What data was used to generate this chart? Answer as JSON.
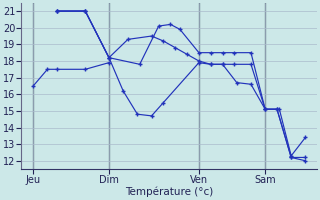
{
  "xlabel": "Température (°c)",
  "background_color": "#cce8e8",
  "line_color": "#2233bb",
  "grid_color": "#aabbcc",
  "vline_color": "#445566",
  "ylim": [
    11.5,
    21.5
  ],
  "yticks": [
    12,
    13,
    14,
    15,
    16,
    17,
    18,
    19,
    20,
    21
  ],
  "xlim": [
    -0.5,
    12.0
  ],
  "day_labels": [
    "Jeu",
    "Dim",
    "Ven",
    "Sam"
  ],
  "day_positions": [
    0,
    3.2,
    7.0,
    9.8
  ],
  "lines": [
    {
      "x": [
        1.0,
        2.2,
        3.2,
        3.8,
        4.4,
        5.0,
        5.5,
        7.0,
        7.5,
        8.0,
        8.6,
        9.2,
        9.8,
        10.4,
        10.9,
        11.5
      ],
      "y": [
        21.0,
        21.0,
        18.2,
        16.2,
        14.8,
        14.7,
        15.5,
        17.9,
        17.8,
        17.8,
        16.7,
        16.6,
        15.1,
        15.1,
        12.3,
        13.4
      ]
    },
    {
      "x": [
        1.0,
        2.2,
        3.2,
        4.5,
        5.3,
        5.8,
        6.2,
        7.0,
        7.5,
        8.0,
        8.5,
        9.2,
        9.8,
        10.3,
        10.9,
        11.5
      ],
      "y": [
        21.0,
        21.0,
        18.2,
        17.8,
        20.1,
        20.2,
        19.9,
        18.5,
        18.5,
        18.5,
        18.5,
        18.5,
        15.1,
        15.1,
        12.2,
        12.2
      ]
    },
    {
      "x": [
        1.0,
        2.2,
        3.2,
        4.0,
        5.0,
        5.5,
        6.0,
        6.5,
        7.0,
        7.5,
        8.0,
        8.5,
        9.2,
        9.8,
        10.3,
        10.9,
        11.5
      ],
      "y": [
        21.0,
        21.0,
        18.2,
        19.3,
        19.5,
        19.2,
        18.8,
        18.4,
        18.0,
        17.8,
        17.8,
        17.8,
        17.8,
        15.1,
        15.1,
        12.2,
        12.0
      ]
    },
    {
      "x": [
        0.0,
        0.6,
        1.0,
        2.2,
        3.2
      ],
      "y": [
        16.5,
        17.5,
        17.5,
        17.5,
        17.9
      ]
    }
  ]
}
